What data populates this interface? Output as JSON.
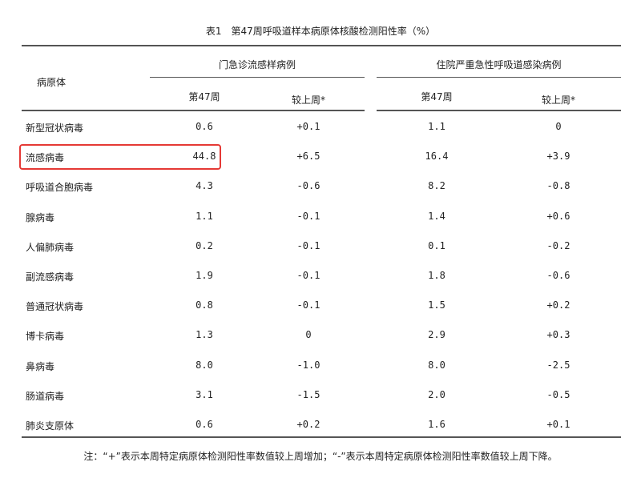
{
  "title": "表1　第47周呼吸道样本病原体核酸检测阳性率（%）",
  "header": {
    "pathogen": "病原体",
    "group_outpatient": "门急诊流感样病例",
    "group_inpatient": "住院严重急性呼吸道感染病例",
    "week": "第47周",
    "change": "较上周*"
  },
  "rows": [
    {
      "name": "新型冠状病毒",
      "op_week": "0.6",
      "op_change": "+0.1",
      "ip_week": "1.1",
      "ip_change": "0"
    },
    {
      "name": "流感病毒",
      "op_week": "44.8",
      "op_change": "+6.5",
      "ip_week": "16.4",
      "ip_change": "+3.9",
      "highlighted": true
    },
    {
      "name": "呼吸道合胞病毒",
      "op_week": "4.3",
      "op_change": "-0.6",
      "ip_week": "8.2",
      "ip_change": "-0.8"
    },
    {
      "name": "腺病毒",
      "op_week": "1.1",
      "op_change": "-0.1",
      "ip_week": "1.4",
      "ip_change": "+0.6"
    },
    {
      "name": "人偏肺病毒",
      "op_week": "0.2",
      "op_change": "-0.1",
      "ip_week": "0.1",
      "ip_change": "-0.2"
    },
    {
      "name": "副流感病毒",
      "op_week": "1.9",
      "op_change": "-0.1",
      "ip_week": "1.8",
      "ip_change": "-0.6"
    },
    {
      "name": "普通冠状病毒",
      "op_week": "0.8",
      "op_change": "-0.1",
      "ip_week": "1.5",
      "ip_change": "+0.2"
    },
    {
      "name": "博卡病毒",
      "op_week": "1.3",
      "op_change": "0",
      "ip_week": "2.9",
      "ip_change": "+0.3"
    },
    {
      "name": "鼻病毒",
      "op_week": "8.0",
      "op_change": "-1.0",
      "ip_week": "8.0",
      "ip_change": "-2.5"
    },
    {
      "name": "肠道病毒",
      "op_week": "3.1",
      "op_change": "-1.5",
      "ip_week": "2.0",
      "ip_change": "-0.5"
    },
    {
      "name": "肺炎支原体",
      "op_week": "0.6",
      "op_change": "+0.2",
      "ip_week": "1.6",
      "ip_change": "+0.1"
    }
  ],
  "note": "注：“+”表示本周特定病原体检测阳性率数值较上周增加；“-”表示本周特定病原体检测阳性率数值较上周下降。",
  "highlight_color": "#e53935"
}
